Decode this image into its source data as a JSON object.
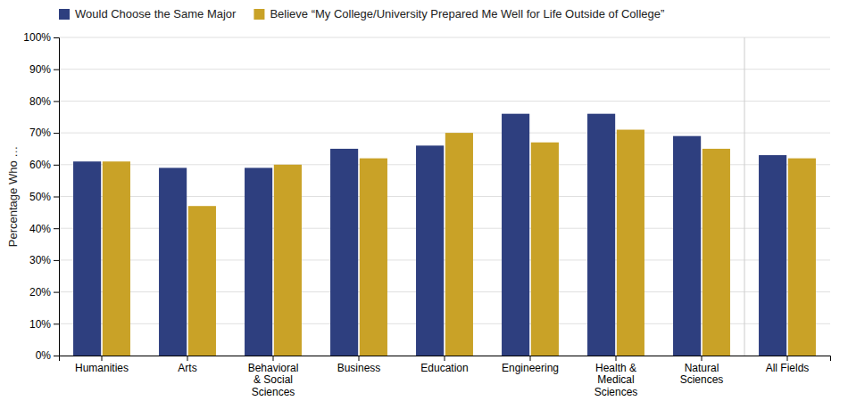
{
  "chart_data": {
    "type": "bar",
    "ylabel": "Percentage Who …",
    "categories": [
      "Humanities",
      "Arts",
      "Behavioral\n& Social\nSciences",
      "Business",
      "Education",
      "Engineering",
      "Health &\nMedical\nSciences",
      "Natural\nSciences",
      "All Fields"
    ],
    "series": [
      {
        "name": "Would Choose the Same Major",
        "color": "#2e3f7f",
        "values": [
          61,
          59,
          59,
          65,
          66,
          76,
          76,
          69,
          63
        ]
      },
      {
        "name": "Believe “My College/University Prepared Me Well for Life Outside of College”",
        "color": "#c9a227",
        "values": [
          61,
          47,
          60,
          62,
          70,
          67,
          71,
          65,
          62
        ]
      }
    ],
    "ylim": [
      0,
      100
    ],
    "yticks": [
      {
        "value": 0,
        "label": "0%"
      },
      {
        "value": 10,
        "label": "10%"
      },
      {
        "value": 20,
        "label": "20%"
      },
      {
        "value": 30,
        "label": "30%"
      },
      {
        "value": 40,
        "label": "40%"
      },
      {
        "value": 50,
        "label": "50%"
      },
      {
        "value": 60,
        "label": "60%"
      },
      {
        "value": 70,
        "label": "70%"
      },
      {
        "value": 80,
        "label": "80%"
      },
      {
        "value": 90,
        "label": "90%"
      },
      {
        "value": 100,
        "label": "100%"
      }
    ],
    "grid": true,
    "legend": "upper left"
  }
}
